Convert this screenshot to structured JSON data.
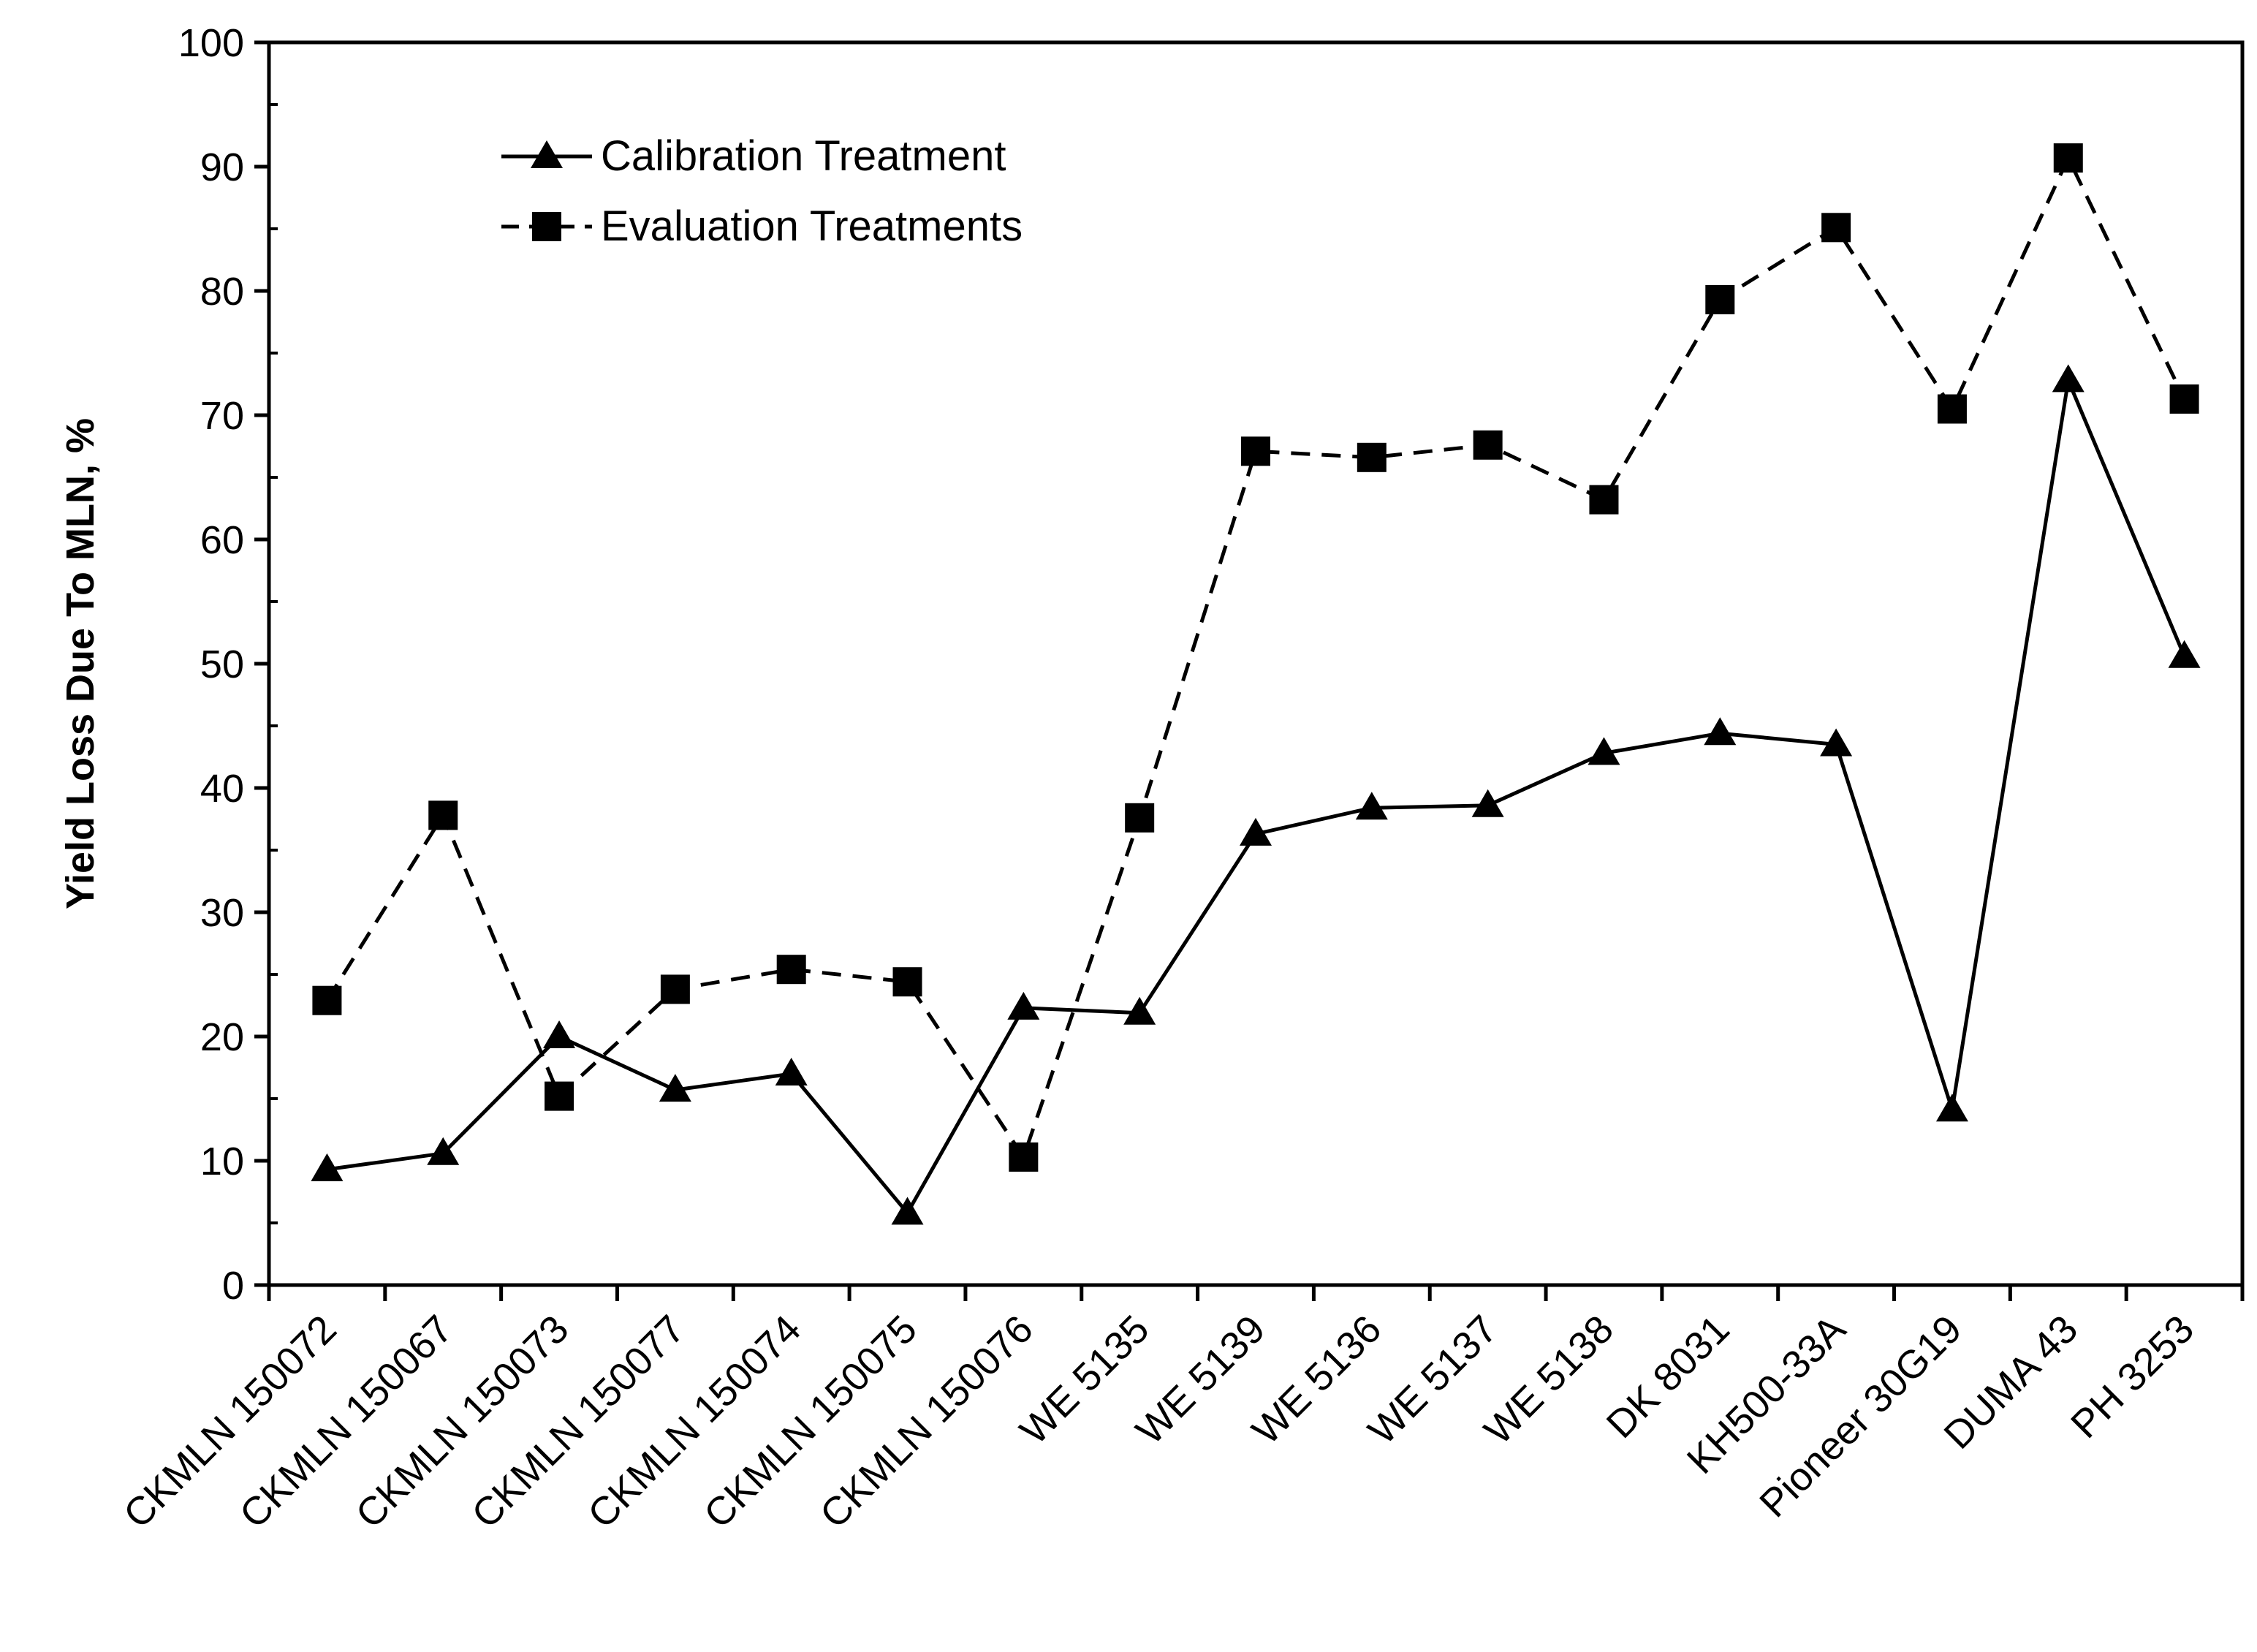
{
  "chart_data": {
    "type": "line",
    "title": "",
    "xlabel": "",
    "ylabel": "Yield Loss Due To MLN, %",
    "ylim": [
      0,
      100
    ],
    "ytick_step": 10,
    "grid": false,
    "legend_position": "top-left",
    "categories": [
      "CKMLN 150072",
      "CKMLN 150067",
      "CKMLN 150073",
      "CKMLN 150077",
      "CKMLN 150074",
      "CKMLN 150075",
      "CKMLN 150076",
      "WE 5135",
      "WE 5139",
      "WE 5136",
      "WE 5137",
      "WE 5138",
      "DK 8031",
      "KH500-33A",
      "Pioneer 30G19",
      "DUMA 43",
      "PH 3253"
    ],
    "series": [
      {
        "name": "Calibration Treatment",
        "marker": "triangle",
        "line_style": "solid",
        "color": "#000000",
        "values": [
          9.3,
          10.6,
          20.0,
          15.7,
          17.0,
          5.8,
          22.3,
          21.9,
          36.3,
          38.4,
          38.6,
          42.8,
          44.4,
          43.5,
          14.1,
          72.8,
          50.6
        ]
      },
      {
        "name": "Evaluation Treatments",
        "marker": "square",
        "line_style": "dashed",
        "color": "#000000",
        "values": [
          22.9,
          37.8,
          15.2,
          23.8,
          25.4,
          24.4,
          10.3,
          37.6,
          67.1,
          66.6,
          67.6,
          63.2,
          79.3,
          85.1,
          70.5,
          90.7,
          71.3
        ]
      }
    ]
  }
}
